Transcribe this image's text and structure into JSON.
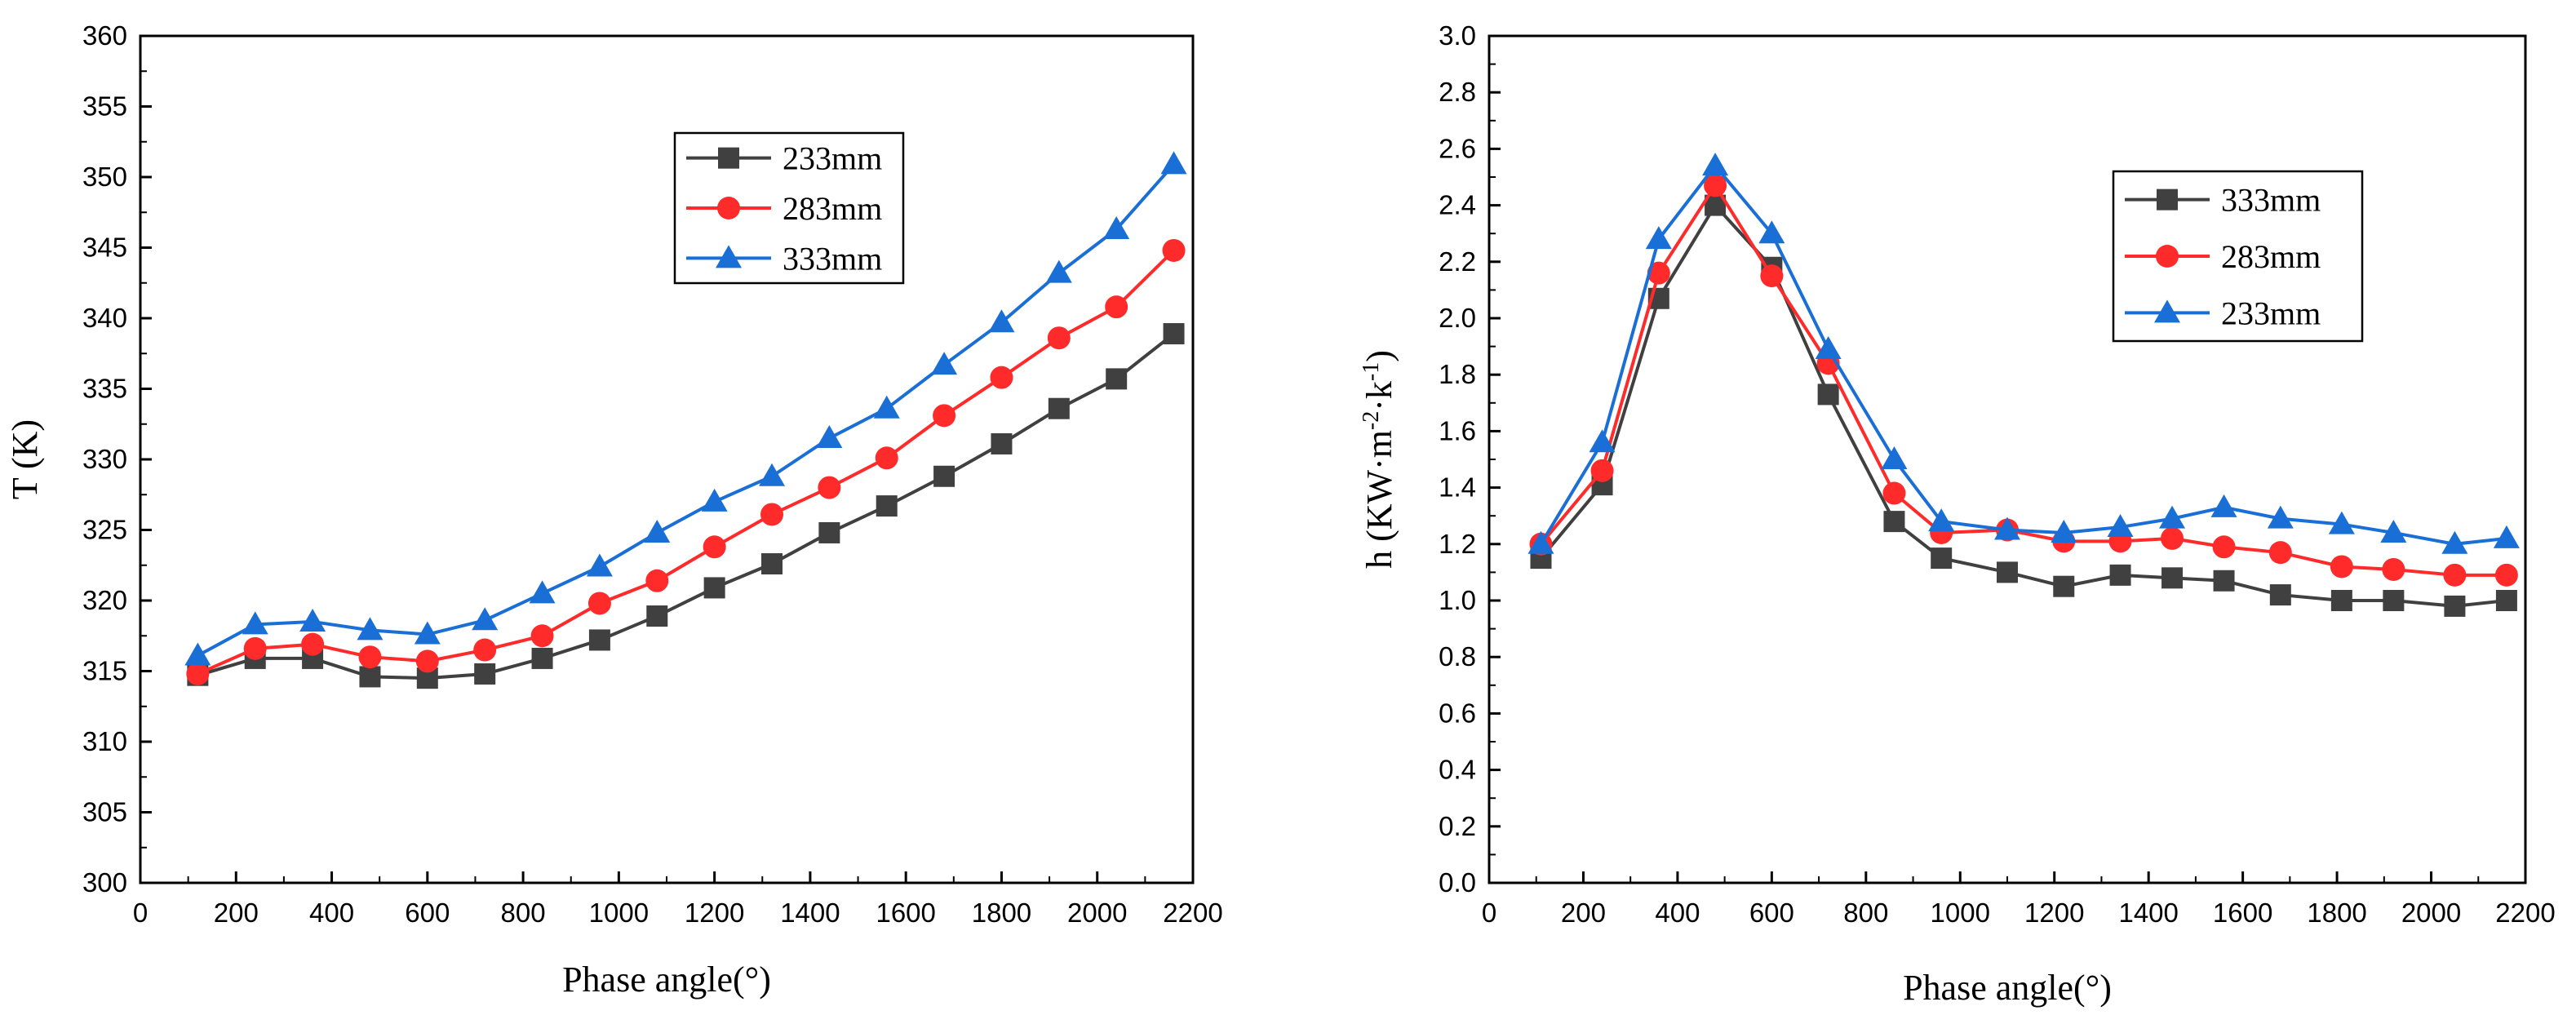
{
  "colors": {
    "black_series": "#404040",
    "red_series": "#ff2a2a",
    "blue_series": "#1a6fd6",
    "axis": "#000000"
  },
  "chart_data": [
    {
      "type": "line",
      "title": "",
      "xlabel": "Phase angle(°)",
      "ylabel": "T (K)",
      "xlim": [
        0,
        2200
      ],
      "ylim": [
        300,
        360
      ],
      "xticks": [
        0,
        200,
        400,
        600,
        800,
        1000,
        1200,
        1400,
        1600,
        1800,
        2000,
        2200
      ],
      "yticks": [
        300,
        305,
        310,
        315,
        320,
        325,
        330,
        335,
        340,
        345,
        350,
        355,
        360
      ],
      "x": [
        120,
        240,
        360,
        480,
        600,
        720,
        840,
        960,
        1080,
        1200,
        1320,
        1440,
        1560,
        1680,
        1800,
        1920,
        2040,
        2160
      ],
      "legend_position": "top-right",
      "series": [
        {
          "name": "233mm",
          "marker": "square",
          "color": "#404040",
          "values": [
            314.7,
            315.9,
            315.9,
            314.6,
            314.5,
            314.8,
            315.9,
            317.2,
            318.9,
            320.9,
            322.6,
            324.8,
            326.7,
            328.8,
            331.1,
            333.6,
            335.7,
            338.9
          ]
        },
        {
          "name": "283mm",
          "marker": "circle",
          "color": "#ff2a2a",
          "values": [
            314.8,
            316.6,
            316.9,
            316.0,
            315.7,
            316.5,
            317.5,
            319.8,
            321.4,
            323.8,
            326.1,
            328.0,
            330.1,
            333.1,
            335.8,
            338.6,
            340.8,
            344.8
          ]
        },
        {
          "name": "333mm",
          "marker": "triangle",
          "color": "#1a6fd6",
          "values": [
            316.1,
            318.3,
            318.5,
            317.9,
            317.6,
            318.6,
            320.5,
            322.4,
            324.8,
            327.0,
            328.8,
            331.5,
            333.6,
            336.7,
            339.7,
            343.2,
            346.3,
            350.9
          ]
        }
      ]
    },
    {
      "type": "line",
      "title": "",
      "xlabel": "Phase angle(°)",
      "ylabel_parts": [
        "h (KW·m",
        "-2",
        "·k",
        "-1",
        ")"
      ],
      "xlim": [
        0,
        2200
      ],
      "ylim": [
        0.0,
        3.0
      ],
      "xticks": [
        0,
        200,
        400,
        600,
        800,
        1000,
        1200,
        1400,
        1600,
        1800,
        2000,
        2200
      ],
      "yticks": [
        "0.0",
        "0.2",
        "0.4",
        "0.6",
        "0.8",
        "1.0",
        "1.2",
        "1.4",
        "1.6",
        "1.8",
        "2.0",
        "2.2",
        "2.4",
        "2.6",
        "2.8",
        "3.0"
      ],
      "x": [
        110,
        240,
        360,
        480,
        600,
        720,
        860,
        960,
        1100,
        1220,
        1340,
        1450,
        1560,
        1680,
        1810,
        1920,
        2050,
        2160
      ],
      "legend_position": "top-right",
      "series": [
        {
          "name": "333mm",
          "marker": "square",
          "color": "#404040",
          "values": [
            1.15,
            1.41,
            2.07,
            2.4,
            2.18,
            1.73,
            1.28,
            1.15,
            1.1,
            1.05,
            1.09,
            1.08,
            1.07,
            1.02,
            1.0,
            1.0,
            0.98,
            1.0
          ]
        },
        {
          "name": "283mm",
          "marker": "circle",
          "color": "#ff2a2a",
          "values": [
            1.2,
            1.46,
            2.16,
            2.47,
            2.15,
            1.84,
            1.38,
            1.24,
            1.25,
            1.21,
            1.21,
            1.22,
            1.19,
            1.17,
            1.12,
            1.11,
            1.09,
            1.09
          ]
        },
        {
          "name": "233mm",
          "marker": "triangle",
          "color": "#1a6fd6",
          "values": [
            1.2,
            1.56,
            2.28,
            2.54,
            2.3,
            1.89,
            1.5,
            1.28,
            1.25,
            1.24,
            1.26,
            1.29,
            1.33,
            1.29,
            1.27,
            1.24,
            1.2,
            1.22
          ]
        }
      ]
    }
  ]
}
